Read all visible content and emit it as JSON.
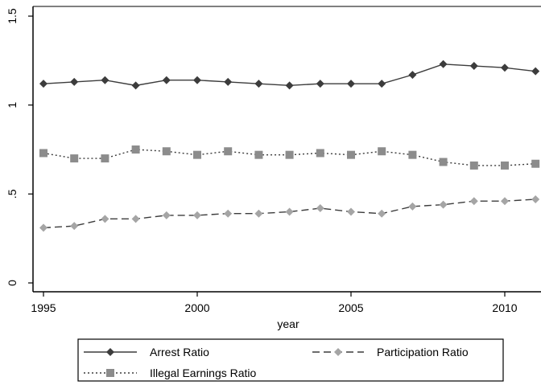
{
  "chart_data": {
    "type": "line",
    "xlabel": "year",
    "ylabel": "",
    "xlim": [
      1995,
      2011
    ],
    "ylim": [
      0,
      1.5
    ],
    "x_ticks": [
      "1995",
      "2000",
      "2005",
      "2010"
    ],
    "y_ticks": [
      "0",
      ".5",
      "1",
      "1.5"
    ],
    "grid": false,
    "legend_position": "bottom",
    "x": [
      1995,
      1996,
      1997,
      1998,
      1999,
      2000,
      2001,
      2002,
      2003,
      2004,
      2005,
      2006,
      2007,
      2008,
      2009,
      2010,
      2011
    ],
    "series": [
      {
        "name": "Arrest Ratio",
        "style": "solid",
        "marker": "diamond",
        "color": "#3c3c3c",
        "values": [
          1.12,
          1.13,
          1.14,
          1.11,
          1.14,
          1.14,
          1.13,
          1.12,
          1.11,
          1.12,
          1.12,
          1.12,
          1.17,
          1.23,
          1.22,
          1.21,
          1.19
        ]
      },
      {
        "name": "Participation Ratio",
        "style": "dashed",
        "marker": "diamond",
        "color": "#a5a5a5",
        "values": [
          0.31,
          0.32,
          0.36,
          0.36,
          0.38,
          0.38,
          0.39,
          0.39,
          0.4,
          0.42,
          0.4,
          0.39,
          0.43,
          0.44,
          0.46,
          0.46,
          0.47
        ]
      },
      {
        "name": "Illegal Earnings Ratio",
        "style": "dotted",
        "marker": "square",
        "color": "#8c8c8c",
        "values": [
          0.73,
          0.7,
          0.7,
          0.75,
          0.74,
          0.72,
          0.74,
          0.72,
          0.72,
          0.73,
          0.72,
          0.74,
          0.72,
          0.68,
          0.66,
          0.66,
          0.67
        ]
      }
    ]
  }
}
